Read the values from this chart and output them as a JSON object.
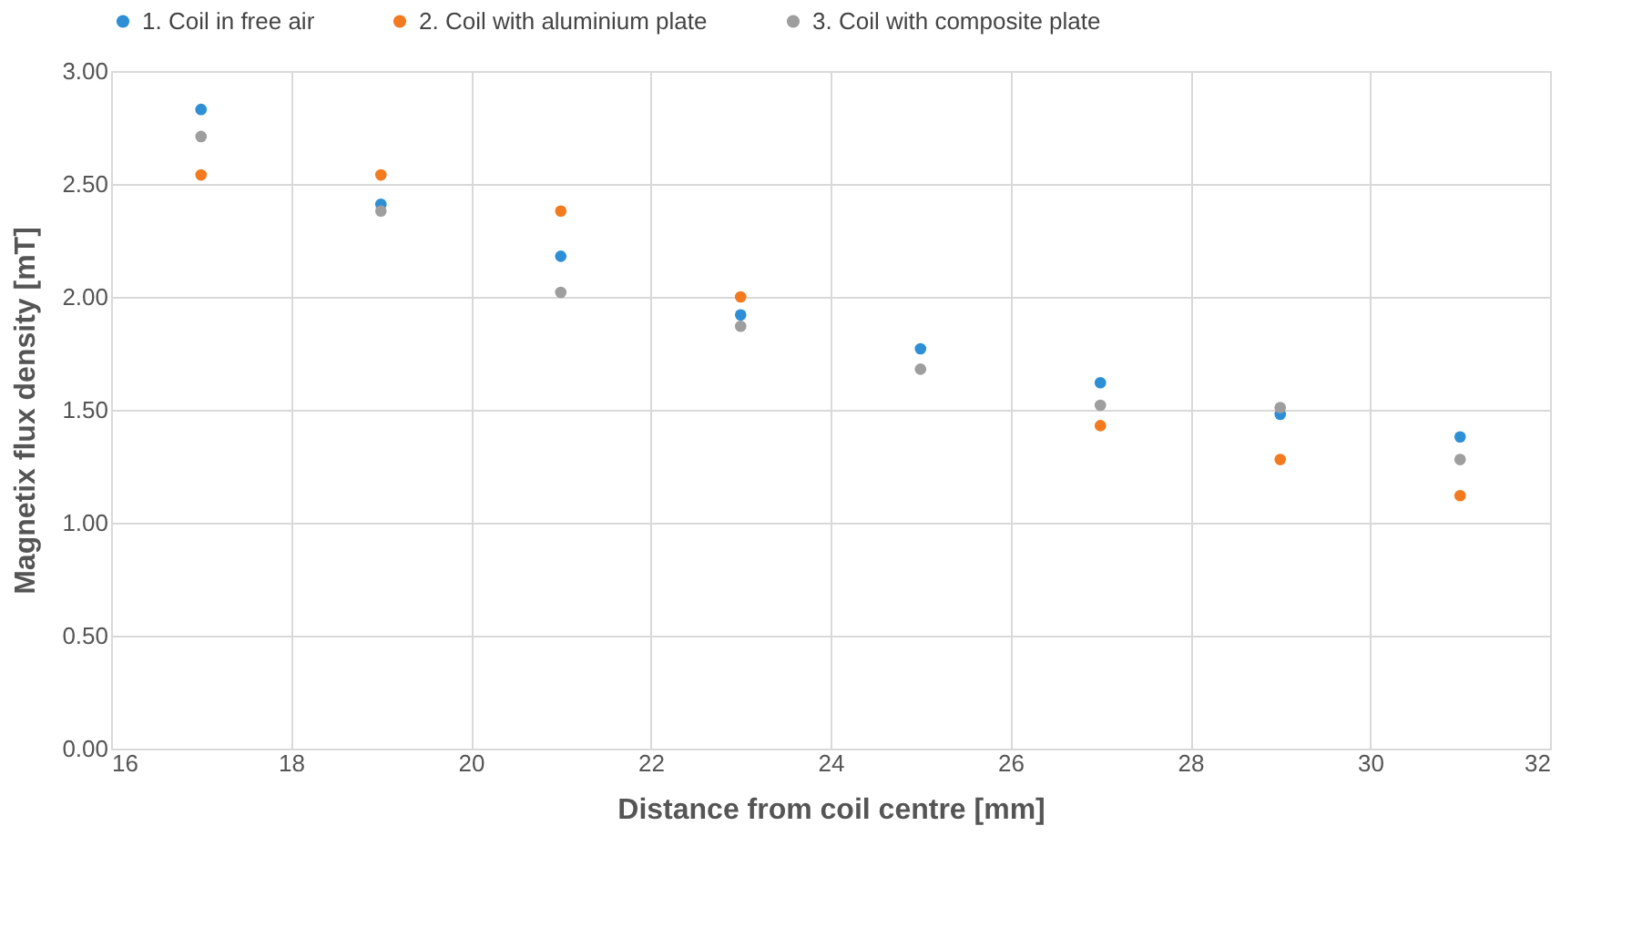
{
  "chart_data": {
    "type": "scatter",
    "xlabel": "Distance from coil centre [mm]",
    "ylabel": "Magnetix flux density [mT]",
    "x": [
      17,
      19,
      21,
      23,
      25,
      27,
      29,
      31
    ],
    "series": [
      {
        "name": "1. Coil in free air",
        "color": "#2e8fd6",
        "values": [
          2.83,
          2.41,
          2.18,
          1.92,
          1.77,
          1.62,
          1.48,
          1.38
        ]
      },
      {
        "name": "2. Coil with aluminium plate",
        "color": "#f47a20",
        "values": [
          2.54,
          2.54,
          2.38,
          2.0,
          null,
          1.43,
          1.28,
          1.12
        ]
      },
      {
        "name": "3. Coil with composite plate",
        "color": "#9e9e9e",
        "values": [
          2.71,
          2.38,
          2.02,
          1.87,
          1.68,
          1.52,
          1.51,
          1.28
        ]
      }
    ],
    "xlim": [
      16,
      32
    ],
    "xticks": [
      16,
      18,
      20,
      22,
      24,
      26,
      28,
      30,
      32
    ],
    "ylim": [
      0,
      3
    ],
    "yticks": [
      {
        "value": 0,
        "label": "0.00"
      },
      {
        "value": 0.5,
        "label": "0.50"
      },
      {
        "value": 1,
        "label": "1.00"
      },
      {
        "value": 1.5,
        "label": "1.50"
      },
      {
        "value": 2,
        "label": "2.00"
      },
      {
        "value": 2.5,
        "label": "2.50"
      },
      {
        "value": 3,
        "label": "3.00"
      }
    ],
    "grid": true,
    "legend": "top",
    "marker": "circle"
  }
}
